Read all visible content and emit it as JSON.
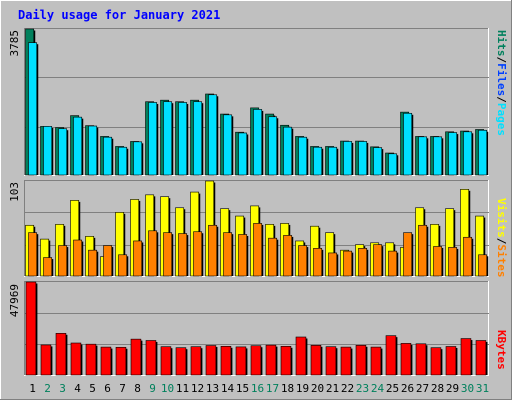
{
  "title": "Daily usage for January 2021",
  "colors": {
    "background": "#C0C0C0",
    "hits": "#00805C",
    "files": "#0040FF",
    "pages": "#00E0FF",
    "visits": "#FFFF00",
    "sites": "#FF8000",
    "kbytes": "#FF0000",
    "title_text": "#0000FF",
    "weekday": "#000000",
    "weekend": "#00805C"
  },
  "labels": {
    "top_max": "3785",
    "mid_max": "103",
    "bot_max": "47969",
    "pages": "Pages",
    "files": "Files",
    "hits": "Hits",
    "sites": "Sites",
    "visits": "Visits",
    "kbytes": "KBytes",
    "sep": "/"
  },
  "chart_data": {
    "type": "bar",
    "title": "Daily usage for January 2021",
    "x": [
      1,
      2,
      3,
      4,
      5,
      6,
      7,
      8,
      9,
      10,
      11,
      12,
      13,
      14,
      15,
      16,
      17,
      18,
      19,
      20,
      21,
      22,
      23,
      24,
      25,
      26,
      27,
      28,
      29,
      30,
      31
    ],
    "weekend_days": [
      2,
      3,
      9,
      10,
      16,
      17,
      23,
      24,
      30,
      31
    ],
    "panels": [
      {
        "name": "requests",
        "ymax": 3785,
        "ymax_label": "3785",
        "series": [
          {
            "name": "Hits",
            "values": [
              3785,
              1260,
              1230,
              1540,
              1280,
              1000,
              740,
              870,
              1900,
              1940,
              1900,
              1940,
              2100,
              1580,
              1110,
              1740,
              1580,
              1290,
              1000,
              740,
              740,
              880,
              880,
              730,
              570,
              1630,
              1000,
              1000,
              1120,
              1140,
              1180
            ]
          },
          {
            "name": "Files",
            "values": [
              3430,
              1260,
              1200,
              1500,
              1270,
              980,
              720,
              860,
              1880,
              1900,
              1880,
              1900,
              2080,
              1560,
              1090,
              1700,
              1510,
              1240,
              980,
              720,
              720,
              870,
              870,
              710,
              550,
              1600,
              990,
              990,
              1100,
              1120,
              1160
            ]
          },
          {
            "name": "Pages",
            "values": [
              3430,
              1260,
              1200,
              1500,
              1270,
              980,
              720,
              860,
              1880,
              1900,
              1880,
              1900,
              2080,
              1560,
              1090,
              1700,
              1510,
              1240,
              980,
              720,
              720,
              870,
              870,
              710,
              550,
              1600,
              990,
              990,
              1100,
              1120,
              1160
            ]
          }
        ]
      },
      {
        "name": "visitors",
        "ymax": 103,
        "ymax_label": "103",
        "series": [
          {
            "name": "Visits",
            "values": [
              55,
              40,
              56,
              82,
              43,
              21,
              69,
              83,
              88,
              86,
              74,
              91,
              103,
              73,
              65,
              76,
              56,
              57,
              38,
              54,
              47,
              28,
              34,
              36,
              36,
              31,
              74,
              56,
              73,
              94,
              65
            ]
          },
          {
            "name": "Sites",
            "values": [
              47,
              20,
              33,
              39,
              28,
              33,
              23,
              38,
              49,
              47,
              46,
              48,
              55,
              47,
              45,
              57,
              41,
              44,
              33,
              30,
              25,
              27,
              30,
              34,
              27,
              47,
              55,
              32,
              31,
              42,
              23
            ]
          }
        ]
      },
      {
        "name": "volume",
        "ymax": 47969,
        "ymax_label": "47969",
        "series": [
          {
            "name": "KBytes",
            "values": [
              47969,
              15500,
              21500,
              16500,
              15900,
              14400,
              14300,
              18500,
              17800,
              14600,
              14100,
              14600,
              15200,
              14800,
              14500,
              15100,
              15400,
              14800,
              19600,
              15300,
              14600,
              14400,
              15300,
              14400,
              20300,
              16300,
              16100,
              14100,
              14700,
              18800,
              17800
            ]
          }
        ]
      }
    ]
  }
}
